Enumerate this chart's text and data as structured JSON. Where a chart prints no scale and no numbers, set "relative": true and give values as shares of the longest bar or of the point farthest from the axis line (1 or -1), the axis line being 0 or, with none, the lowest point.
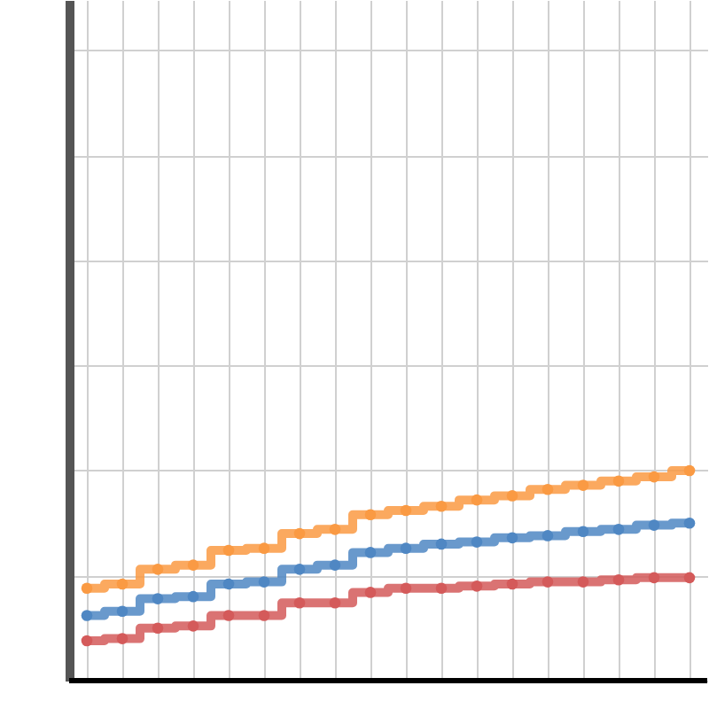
{
  "chart_data": {
    "type": "step",
    "relative": true,
    "grid": true,
    "tick_labels": false,
    "marker": "circle",
    "categories": [
      null,
      null,
      null,
      null,
      null,
      null,
      null,
      null,
      null,
      null,
      null,
      null,
      null,
      null,
      null,
      null,
      null,
      null
    ],
    "series": [
      {
        "color": "#fa9a43",
        "values": [
          0.44,
          0.46,
          0.53,
          0.55,
          0.62,
          0.63,
          0.7,
          0.72,
          0.79,
          0.81,
          0.83,
          0.86,
          0.88,
          0.91,
          0.93,
          0.95,
          0.97,
          1
        ]
      },
      {
        "color": "#4f87c3",
        "values": [
          0.31,
          0.33,
          0.39,
          0.4,
          0.46,
          0.47,
          0.53,
          0.55,
          0.61,
          0.63,
          0.65,
          0.66,
          0.68,
          0.69,
          0.71,
          0.72,
          0.74,
          0.75
        ]
      },
      {
        "color": "#d45a5a",
        "values": [
          0.19,
          0.2,
          0.25,
          0.26,
          0.31,
          0.31,
          0.37,
          0.37,
          0.42,
          0.44,
          0.44,
          0.45,
          0.46,
          0.47,
          0.47,
          0.48,
          0.49,
          0.49
        ]
      }
    ]
  }
}
